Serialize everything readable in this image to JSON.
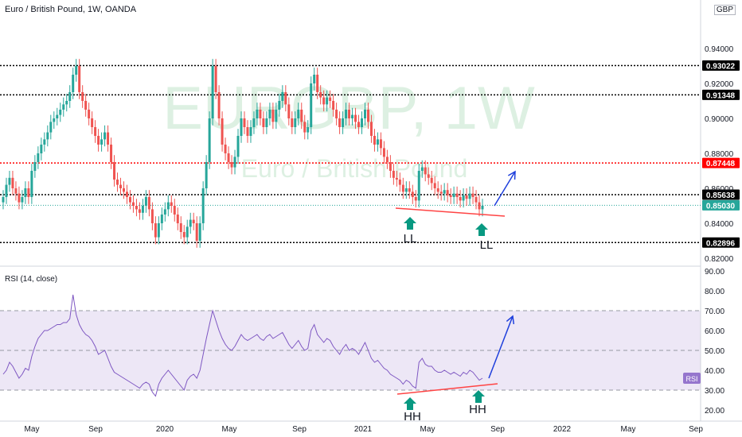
{
  "header": {
    "title": "Euro / British Pound, 1W, OANDA",
    "currency": "GBP"
  },
  "watermark": {
    "symbol": "EURGBP, 1W",
    "name": "Euro / British Pound"
  },
  "rsi_panel": {
    "label": "RSI (14, close)",
    "badge": "RSI"
  },
  "annotations": {
    "price_left_low": "LL",
    "price_right_low": "LL",
    "rsi_left_low": "HH",
    "rsi_right_low": "HH"
  },
  "colors": {
    "up": "#26a69a",
    "down": "#ef5350",
    "level_black": "#000000",
    "level_red": "#ff0000",
    "rsi_line": "#7e57c2",
    "rsi_band": "#ede7f6",
    "arrow": "#1e3fdc",
    "marker": "#089981",
    "trendline": "#ff4444"
  },
  "chart_data": [
    {
      "type": "candlestick",
      "title": "Euro / British Pound, 1W, OANDA",
      "x_ticks": [
        "May",
        "Sep",
        "2020",
        "May",
        "Sep",
        "2021",
        "May",
        "Sep",
        "2022",
        "May",
        "Sep"
      ],
      "y_ticks": [
        "0.82000",
        "0.84000",
        "0.86000",
        "0.88000",
        "0.90000",
        "0.92000",
        "0.94000"
      ],
      "ylim": [
        0.82,
        0.95
      ],
      "levels": [
        {
          "label": "0.93022",
          "value": 0.93022,
          "color": "black"
        },
        {
          "label": "0.91348",
          "value": 0.91348,
          "color": "black"
        },
        {
          "label": "0.87448",
          "value": 0.87448,
          "color": "red"
        },
        {
          "label": "0.85638",
          "value": 0.85638,
          "color": "black"
        },
        {
          "label": "0.82896",
          "value": 0.82896,
          "color": "black"
        }
      ],
      "current_price": {
        "label": "0.85030",
        "value": 0.8503
      },
      "closes": [
        0.855,
        0.862,
        0.866,
        0.86,
        0.857,
        0.852,
        0.855,
        0.86,
        0.855,
        0.87,
        0.875,
        0.88,
        0.885,
        0.888,
        0.892,
        0.898,
        0.9,
        0.902,
        0.905,
        0.908,
        0.91,
        0.915,
        0.925,
        0.93,
        0.915,
        0.91,
        0.905,
        0.9,
        0.895,
        0.89,
        0.885,
        0.888,
        0.892,
        0.885,
        0.875,
        0.865,
        0.862,
        0.86,
        0.858,
        0.855,
        0.852,
        0.85,
        0.848,
        0.846,
        0.85,
        0.855,
        0.848,
        0.84,
        0.832,
        0.84,
        0.845,
        0.848,
        0.852,
        0.85,
        0.845,
        0.84,
        0.835,
        0.832,
        0.838,
        0.842,
        0.84,
        0.83,
        0.84,
        0.86,
        0.875,
        0.9,
        0.93,
        0.915,
        0.9,
        0.885,
        0.88,
        0.875,
        0.872,
        0.878,
        0.89,
        0.9,
        0.895,
        0.89,
        0.895,
        0.9,
        0.905,
        0.9,
        0.895,
        0.9,
        0.905,
        0.898,
        0.905,
        0.91,
        0.915,
        0.908,
        0.9,
        0.895,
        0.9,
        0.905,
        0.898,
        0.892,
        0.895,
        0.92,
        0.925,
        0.915,
        0.912,
        0.908,
        0.912,
        0.91,
        0.905,
        0.9,
        0.895,
        0.9,
        0.905,
        0.9,
        0.902,
        0.898,
        0.895,
        0.9,
        0.905,
        0.898,
        0.89,
        0.885,
        0.888,
        0.883,
        0.878,
        0.875,
        0.87,
        0.866,
        0.865,
        0.862,
        0.858,
        0.86,
        0.858,
        0.855,
        0.853,
        0.87,
        0.872,
        0.868,
        0.866,
        0.863,
        0.86,
        0.858,
        0.857,
        0.859,
        0.856,
        0.855,
        0.857,
        0.855,
        0.853,
        0.856,
        0.854,
        0.857,
        0.855,
        0.852,
        0.848,
        0.85
      ],
      "highs_lows_note": "wicks extend about 0.004 beyond bodies"
    },
    {
      "type": "line",
      "title": "RSI (14, close)",
      "y_ticks": [
        "20.00",
        "30.00",
        "40.00",
        "50.00",
        "60.00",
        "70.00",
        "80.00",
        "90.00"
      ],
      "ylim": [
        15,
        93
      ],
      "band": [
        30,
        70
      ],
      "midline": 50,
      "series": [
        {
          "name": "RSI",
          "values": [
            38,
            40,
            44,
            42,
            39,
            36,
            38,
            41,
            40,
            47,
            52,
            56,
            58,
            60,
            60,
            61,
            62,
            63,
            63,
            64,
            64,
            66,
            78,
            68,
            63,
            60,
            58,
            57,
            55,
            52,
            48,
            49,
            50,
            46,
            42,
            39,
            38,
            37,
            36,
            35,
            34,
            33,
            32,
            31,
            33,
            34,
            33,
            29,
            27,
            33,
            36,
            38,
            40,
            38,
            36,
            34,
            32,
            30,
            35,
            37,
            38,
            36,
            40,
            48,
            56,
            63,
            70,
            65,
            60,
            56,
            53,
            51,
            50,
            52,
            55,
            58,
            56,
            55,
            56,
            57,
            58,
            56,
            55,
            57,
            58,
            56,
            57,
            58,
            59,
            56,
            53,
            51,
            53,
            55,
            52,
            50,
            51,
            60,
            63,
            58,
            56,
            54,
            56,
            55,
            52,
            50,
            48,
            51,
            53,
            50,
            51,
            50,
            48,
            51,
            54,
            50,
            46,
            44,
            45,
            43,
            41,
            40,
            38,
            37,
            36,
            35,
            33,
            35,
            34,
            32,
            31,
            44,
            46,
            43,
            42,
            42,
            40,
            39,
            39,
            40,
            39,
            38,
            39,
            38,
            37,
            39,
            38,
            40,
            39,
            37,
            35,
            36
          ]
        }
      ]
    }
  ]
}
